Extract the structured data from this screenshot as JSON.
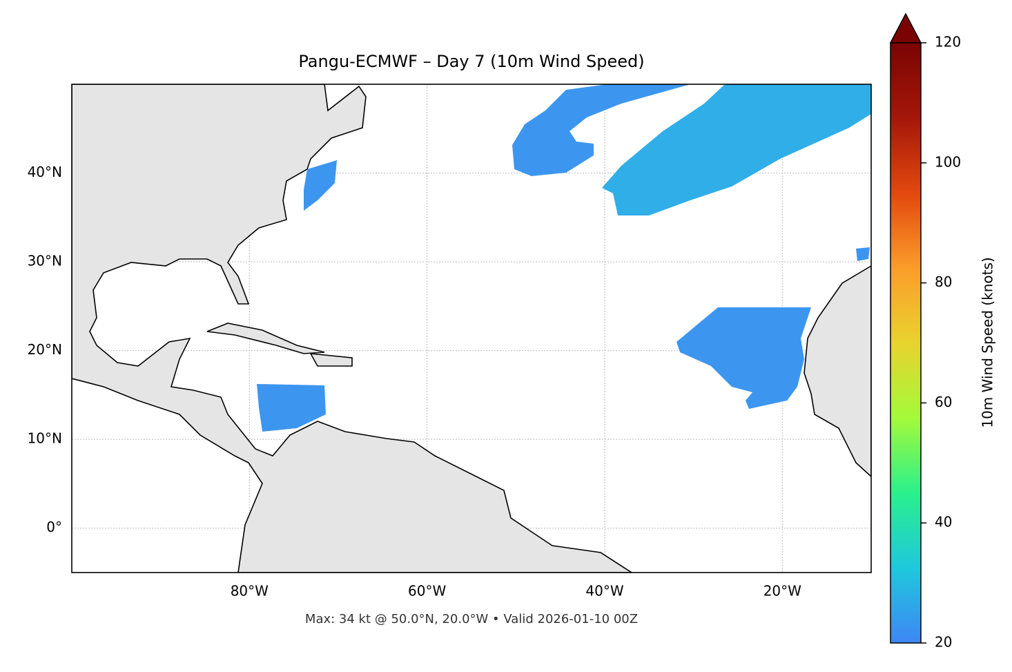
{
  "chart_data": {
    "type": "map",
    "title": "Pangu-ECMWF – Day 7 (10m Wind Speed)",
    "caption": "Max: 34 kt @ 50.0°N, 20.0°W • Valid 2026-01-10 00Z",
    "xlim": [
      -100,
      -10
    ],
    "ylim": [
      -5,
      50
    ],
    "xticks": [
      {
        "value": -80,
        "label": "80°W"
      },
      {
        "value": -60,
        "label": "60°W"
      },
      {
        "value": -40,
        "label": "40°W"
      },
      {
        "value": -20,
        "label": "20°W"
      }
    ],
    "yticks": [
      {
        "value": 0,
        "label": "0°"
      },
      {
        "value": 10,
        "label": "10°N"
      },
      {
        "value": 20,
        "label": "20°N"
      },
      {
        "value": 30,
        "label": "30°N"
      },
      {
        "value": 40,
        "label": "40°N"
      }
    ],
    "grid": true,
    "colorbar": {
      "label": "10m Wind Speed (knots)",
      "lim": [
        20,
        120
      ],
      "ticks": [
        20,
        40,
        60,
        80,
        100,
        120
      ],
      "colors": [
        "#3f86f5",
        "#1ec8dc",
        "#2af08c",
        "#a4fa3a",
        "#e8d32e",
        "#fb9c2a",
        "#e2480e",
        "#a4170a",
        "#7a0403"
      ]
    }
  }
}
